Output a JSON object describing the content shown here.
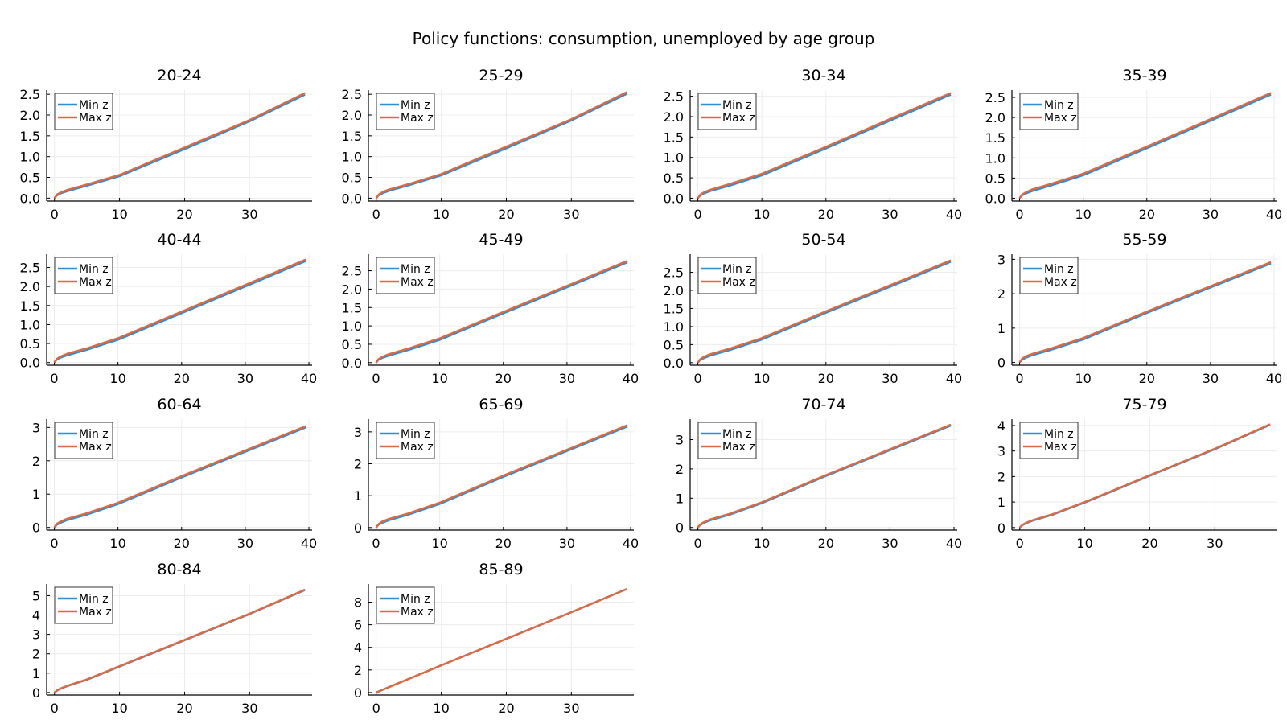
{
  "figure": {
    "title": "Policy functions: consumption, unemployed by age group"
  },
  "colors": {
    "min_z": "#2a8fd6",
    "max_z": "#e0683f",
    "grid": "#ececec",
    "axis": "#000000"
  },
  "legend_placement": "top-left",
  "grid": true,
  "chart_data": [
    {
      "type": "line",
      "title": "20-24",
      "xticks": [
        0,
        10,
        20,
        30
      ],
      "yticks": [
        0,
        0.5,
        1.0,
        1.5,
        2.0,
        2.5
      ],
      "ytick_labels": [
        "0.0",
        "0.5",
        "1.0",
        "1.5",
        "2.0",
        "2.5"
      ],
      "xlim": [
        -1.2,
        39.6
      ],
      "ylim": [
        -0.07,
        2.6
      ],
      "series": [
        {
          "name": "Min z",
          "x": [
            0,
            0.4,
            1,
            2,
            5,
            10,
            20,
            30,
            38.5
          ],
          "y": [
            0,
            0.07,
            0.12,
            0.17,
            0.3,
            0.53,
            1.18,
            1.85,
            2.49
          ]
        },
        {
          "name": "Max z",
          "x": [
            0,
            0.4,
            1,
            2,
            5,
            10,
            20,
            30,
            38.5
          ],
          "y": [
            0,
            0.09,
            0.14,
            0.2,
            0.33,
            0.56,
            1.22,
            1.88,
            2.53
          ]
        }
      ]
    },
    {
      "type": "line",
      "title": "25-29",
      "xticks": [
        0,
        10,
        20,
        30
      ],
      "yticks": [
        0,
        0.5,
        1.0,
        1.5,
        2.0,
        2.5
      ],
      "ytick_labels": [
        "0.0",
        "0.5",
        "1.0",
        "1.5",
        "2.0",
        "2.5"
      ],
      "xlim": [
        -1.2,
        39.6
      ],
      "ylim": [
        -0.07,
        2.6
      ],
      "series": [
        {
          "name": "Min z",
          "x": [
            0,
            0.4,
            1,
            2,
            5,
            10,
            20,
            30,
            38.5
          ],
          "y": [
            0,
            0.07,
            0.12,
            0.18,
            0.31,
            0.55,
            1.2,
            1.87,
            2.51
          ]
        },
        {
          "name": "Max z",
          "x": [
            0,
            0.4,
            1,
            2,
            5,
            10,
            20,
            30,
            38.5
          ],
          "y": [
            0,
            0.09,
            0.15,
            0.21,
            0.34,
            0.58,
            1.24,
            1.9,
            2.55
          ]
        }
      ]
    },
    {
      "type": "line",
      "title": "30-34",
      "xticks": [
        0,
        10,
        20,
        30,
        40
      ],
      "yticks": [
        0,
        0.5,
        1.0,
        1.5,
        2.0,
        2.5
      ],
      "ytick_labels": [
        "0.0",
        "0.5",
        "1.0",
        "1.5",
        "2.0",
        "2.5"
      ],
      "xlim": [
        -1.2,
        40.5
      ],
      "ylim": [
        -0.07,
        2.65
      ],
      "series": [
        {
          "name": "Min z",
          "x": [
            0,
            0.4,
            1,
            2,
            5,
            10,
            20,
            30,
            39.5
          ],
          "y": [
            0,
            0.07,
            0.12,
            0.18,
            0.31,
            0.56,
            1.22,
            1.9,
            2.54
          ]
        },
        {
          "name": "Max z",
          "x": [
            0,
            0.4,
            1,
            2,
            5,
            10,
            20,
            30,
            39.5
          ],
          "y": [
            0,
            0.09,
            0.15,
            0.21,
            0.35,
            0.6,
            1.26,
            1.94,
            2.58
          ]
        }
      ]
    },
    {
      "type": "line",
      "title": "35-39",
      "xticks": [
        0,
        10,
        20,
        30,
        40
      ],
      "yticks": [
        0,
        0.5,
        1.0,
        1.5,
        2.0,
        2.5
      ],
      "ytick_labels": [
        "0.0",
        "0.5",
        "1.0",
        "1.5",
        "2.0",
        "2.5"
      ],
      "xlim": [
        -1.2,
        40.5
      ],
      "ylim": [
        -0.07,
        2.68
      ],
      "series": [
        {
          "name": "Min z",
          "x": [
            0,
            0.4,
            1,
            2,
            5,
            10,
            20,
            30,
            39.5
          ],
          "y": [
            0,
            0.07,
            0.12,
            0.18,
            0.32,
            0.57,
            1.24,
            1.92,
            2.57
          ]
        },
        {
          "name": "Max z",
          "x": [
            0,
            0.4,
            1,
            2,
            5,
            10,
            20,
            30,
            39.5
          ],
          "y": [
            0,
            0.09,
            0.15,
            0.22,
            0.36,
            0.61,
            1.28,
            1.96,
            2.61
          ]
        }
      ]
    },
    {
      "type": "line",
      "title": "40-44",
      "xticks": [
        0,
        10,
        20,
        30,
        40
      ],
      "yticks": [
        0,
        0.5,
        1.0,
        1.5,
        2.0,
        2.5
      ],
      "ytick_labels": [
        "0.0",
        "0.5",
        "1.0",
        "1.5",
        "2.0",
        "2.5"
      ],
      "xlim": [
        -1.2,
        40.5
      ],
      "ylim": [
        -0.07,
        2.85
      ],
      "series": [
        {
          "name": "Min z",
          "x": [
            0,
            0.4,
            1,
            2,
            5,
            10,
            20,
            30,
            39.5
          ],
          "y": [
            0,
            0.08,
            0.13,
            0.19,
            0.33,
            0.6,
            1.3,
            2.0,
            2.67
          ]
        },
        {
          "name": "Max z",
          "x": [
            0,
            0.4,
            1,
            2,
            5,
            10,
            20,
            30,
            39.5
          ],
          "y": [
            0,
            0.1,
            0.16,
            0.23,
            0.37,
            0.64,
            1.34,
            2.04,
            2.71
          ]
        }
      ]
    },
    {
      "type": "line",
      "title": "45-49",
      "xticks": [
        0,
        10,
        20,
        30,
        40
      ],
      "yticks": [
        0,
        0.5,
        1.0,
        1.5,
        2.0,
        2.5
      ],
      "ytick_labels": [
        "0.0",
        "0.5",
        "1.0",
        "1.5",
        "2.0",
        "2.5"
      ],
      "xlim": [
        -1.2,
        40.5
      ],
      "ylim": [
        -0.07,
        2.95
      ],
      "series": [
        {
          "name": "Min z",
          "x": [
            0,
            0.4,
            1,
            2,
            5,
            10,
            20,
            30,
            39.5
          ],
          "y": [
            0,
            0.08,
            0.13,
            0.19,
            0.34,
            0.62,
            1.34,
            2.05,
            2.73
          ]
        },
        {
          "name": "Max z",
          "x": [
            0,
            0.4,
            1,
            2,
            5,
            10,
            20,
            30,
            39.5
          ],
          "y": [
            0,
            0.1,
            0.16,
            0.23,
            0.38,
            0.66,
            1.38,
            2.09,
            2.77
          ]
        }
      ]
    },
    {
      "type": "line",
      "title": "50-54",
      "xticks": [
        0,
        10,
        20,
        30,
        40
      ],
      "yticks": [
        0,
        0.5,
        1.0,
        1.5,
        2.0,
        2.5
      ],
      "ytick_labels": [
        "0.0",
        "0.5",
        "1.0",
        "1.5",
        "2.0",
        "2.5"
      ],
      "xlim": [
        -1.2,
        40.5
      ],
      "ylim": [
        -0.07,
        3.0
      ],
      "series": [
        {
          "name": "Min z",
          "x": [
            0,
            0.4,
            1,
            2,
            5,
            10,
            20,
            30,
            39.5
          ],
          "y": [
            0,
            0.08,
            0.13,
            0.2,
            0.35,
            0.64,
            1.38,
            2.1,
            2.79
          ]
        },
        {
          "name": "Max z",
          "x": [
            0,
            0.4,
            1,
            2,
            5,
            10,
            20,
            30,
            39.5
          ],
          "y": [
            0,
            0.1,
            0.17,
            0.24,
            0.39,
            0.68,
            1.42,
            2.14,
            2.83
          ]
        }
      ]
    },
    {
      "type": "line",
      "title": "55-59",
      "xticks": [
        0,
        10,
        20,
        30,
        40
      ],
      "yticks": [
        0,
        1,
        2,
        3
      ],
      "ytick_labels": [
        "0",
        "1",
        "2",
        "3"
      ],
      "xlim": [
        -1.2,
        40.5
      ],
      "ylim": [
        -0.08,
        3.15
      ],
      "series": [
        {
          "name": "Min z",
          "x": [
            0,
            0.4,
            1,
            2,
            5,
            10,
            20,
            30,
            39.5
          ],
          "y": [
            0,
            0.08,
            0.14,
            0.21,
            0.37,
            0.67,
            1.44,
            2.18,
            2.88
          ]
        },
        {
          "name": "Max z",
          "x": [
            0,
            0.4,
            1,
            2,
            5,
            10,
            20,
            30,
            39.5
          ],
          "y": [
            0,
            0.11,
            0.18,
            0.25,
            0.41,
            0.71,
            1.48,
            2.22,
            2.92
          ]
        }
      ]
    },
    {
      "type": "line",
      "title": "60-64",
      "xticks": [
        0,
        10,
        20,
        30,
        40
      ],
      "yticks": [
        0,
        1,
        2,
        3
      ],
      "ytick_labels": [
        "0",
        "1",
        "2",
        "3"
      ],
      "xlim": [
        -1.2,
        40.5
      ],
      "ylim": [
        -0.08,
        3.25
      ],
      "series": [
        {
          "name": "Min z",
          "x": [
            0,
            0.4,
            1,
            2,
            5,
            10,
            20,
            30,
            39.5
          ],
          "y": [
            0,
            0.08,
            0.14,
            0.22,
            0.38,
            0.7,
            1.5,
            2.27,
            3.0
          ]
        },
        {
          "name": "Max z",
          "x": [
            0,
            0.4,
            1,
            2,
            5,
            10,
            20,
            30,
            39.5
          ],
          "y": [
            0,
            0.11,
            0.18,
            0.26,
            0.42,
            0.74,
            1.54,
            2.31,
            3.04
          ]
        }
      ]
    },
    {
      "type": "line",
      "title": "65-69",
      "xticks": [
        0,
        10,
        20,
        30,
        40
      ],
      "yticks": [
        0,
        1,
        2,
        3
      ],
      "ytick_labels": [
        "0",
        "1",
        "2",
        "3"
      ],
      "xlim": [
        -1.2,
        40.5
      ],
      "ylim": [
        -0.08,
        3.4
      ],
      "series": [
        {
          "name": "Min z",
          "x": [
            0,
            0.4,
            1,
            2,
            5,
            10,
            20,
            30,
            39.5
          ],
          "y": [
            0,
            0.09,
            0.15,
            0.23,
            0.4,
            0.74,
            1.59,
            2.4,
            3.17
          ]
        },
        {
          "name": "Max z",
          "x": [
            0,
            0.4,
            1,
            2,
            5,
            10,
            20,
            30,
            39.5
          ],
          "y": [
            0,
            0.11,
            0.19,
            0.27,
            0.44,
            0.78,
            1.63,
            2.44,
            3.21
          ]
        }
      ]
    },
    {
      "type": "line",
      "title": "70-74",
      "xticks": [
        0,
        10,
        20,
        30,
        40
      ],
      "yticks": [
        0,
        1,
        2,
        3
      ],
      "ytick_labels": [
        "0",
        "1",
        "2",
        "3"
      ],
      "xlim": [
        -1.2,
        40.5
      ],
      "ylim": [
        -0.09,
        3.7
      ],
      "series": [
        {
          "name": "Min z",
          "x": [
            0,
            0.4,
            1,
            2,
            5,
            10,
            20,
            30,
            39.5
          ],
          "y": [
            0,
            0.09,
            0.16,
            0.25,
            0.44,
            0.83,
            1.76,
            2.64,
            3.48
          ]
        },
        {
          "name": "Max z",
          "x": [
            0,
            0.4,
            1,
            2,
            5,
            10,
            20,
            30,
            39.5
          ],
          "y": [
            0,
            0.11,
            0.19,
            0.28,
            0.47,
            0.86,
            1.79,
            2.67,
            3.51
          ]
        }
      ]
    },
    {
      "type": "line",
      "title": "75-79",
      "xticks": [
        0,
        10,
        20,
        30
      ],
      "yticks": [
        0,
        1,
        2,
        3,
        4
      ],
      "ytick_labels": [
        "0",
        "1",
        "2",
        "3",
        "4"
      ],
      "xlim": [
        -1.2,
        39.6
      ],
      "ylim": [
        -0.1,
        4.25
      ],
      "series": [
        {
          "name": "Min z",
          "x": [
            0,
            0.4,
            1,
            2,
            5,
            10,
            20,
            30,
            38.5
          ],
          "y": [
            0,
            0.09,
            0.17,
            0.27,
            0.5,
            0.98,
            2.03,
            3.07,
            4.03
          ]
        },
        {
          "name": "Max z",
          "x": [
            0,
            0.4,
            1,
            2,
            5,
            10,
            20,
            30,
            38.5
          ],
          "y": [
            0,
            0.1,
            0.19,
            0.29,
            0.52,
            1.0,
            2.05,
            3.09,
            4.05
          ]
        }
      ]
    },
    {
      "type": "line",
      "title": "80-84",
      "xticks": [
        0,
        10,
        20,
        30
      ],
      "yticks": [
        0,
        1,
        2,
        3,
        4,
        5
      ],
      "ytick_labels": [
        "0",
        "1",
        "2",
        "3",
        "4",
        "5"
      ],
      "xlim": [
        -1.2,
        39.6
      ],
      "ylim": [
        -0.13,
        5.6
      ],
      "series": [
        {
          "name": "Min z",
          "x": [
            0,
            0.4,
            1,
            2,
            5,
            10,
            20,
            30,
            38.5
          ],
          "y": [
            0,
            0.1,
            0.2,
            0.33,
            0.66,
            1.34,
            2.7,
            4.05,
            5.29
          ]
        },
        {
          "name": "Max z",
          "x": [
            0,
            0.4,
            1,
            2,
            5,
            10,
            20,
            30,
            38.5
          ],
          "y": [
            0,
            0.11,
            0.22,
            0.35,
            0.68,
            1.36,
            2.72,
            4.07,
            5.31
          ]
        }
      ]
    },
    {
      "type": "line",
      "title": "85-89",
      "xticks": [
        0,
        10,
        20,
        30
      ],
      "yticks": [
        0,
        2,
        4,
        6,
        8
      ],
      "ytick_labels": [
        "0",
        "2",
        "4",
        "6",
        "8"
      ],
      "xlim": [
        -1.2,
        39.6
      ],
      "ylim": [
        -0.22,
        9.6
      ],
      "series": [
        {
          "name": "Min z",
          "x": [
            0,
            1,
            5,
            10,
            20,
            30,
            38.5
          ],
          "y": [
            0,
            0.24,
            1.2,
            2.4,
            4.75,
            7.1,
            9.15
          ]
        },
        {
          "name": "Max z",
          "x": [
            0,
            1,
            5,
            10,
            20,
            30,
            38.5
          ],
          "y": [
            0,
            0.25,
            1.21,
            2.41,
            4.76,
            7.11,
            9.16
          ]
        }
      ]
    }
  ]
}
